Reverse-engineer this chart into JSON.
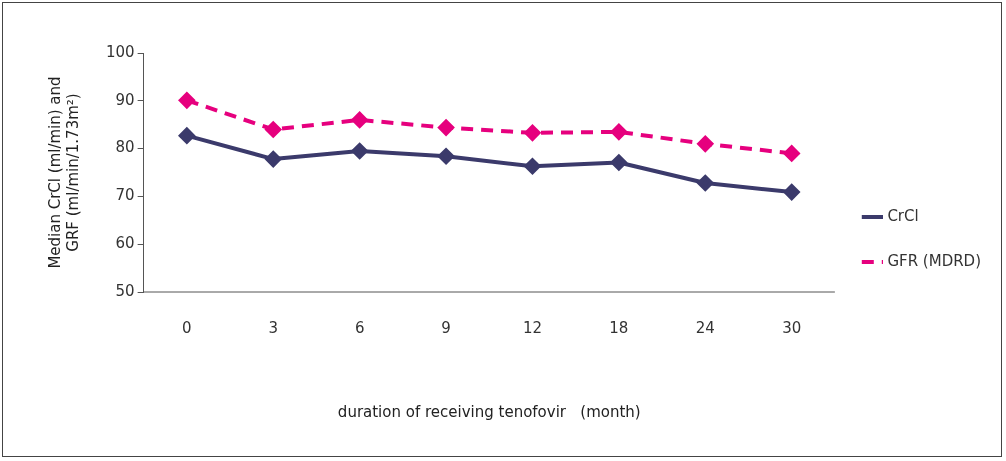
{
  "chart_data": {
    "type": "line",
    "xlabel": "duration of receiving tenofovir   (month)",
    "ylabel": "Median CrCl (ml/min) and GRF (ml/min/1.73m²)",
    "categories": [
      "0",
      "3",
      "6",
      "9",
      "12",
      "18",
      "24",
      "30"
    ],
    "series": [
      {
        "name": "CrCl",
        "color": "#3b3a6b",
        "line_style": "solid",
        "values": [
          82.7,
          77.8,
          79.5,
          78.4,
          76.3,
          77.1,
          72.8,
          70.9
        ]
      },
      {
        "name": "GFR (MDRD)",
        "color": "#e6007e",
        "line_style": "dashed",
        "values": [
          90.1,
          84.0,
          86.0,
          84.4,
          83.3,
          83.5,
          81.0,
          79.0
        ]
      }
    ],
    "ylim": [
      50,
      100
    ],
    "yticks": [
      50,
      60,
      70,
      80,
      90,
      100
    ],
    "grid": false,
    "legend": "right",
    "marker": "diamond"
  }
}
